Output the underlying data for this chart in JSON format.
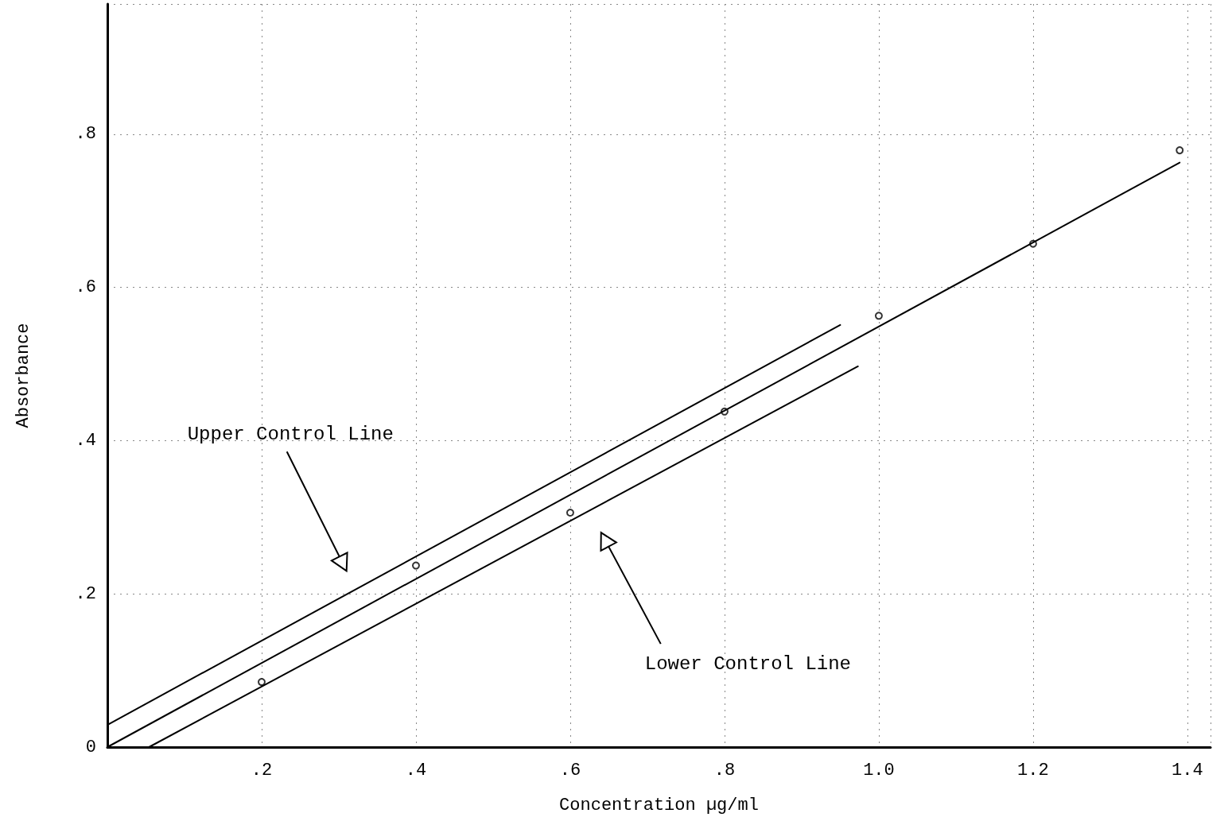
{
  "chart_data": {
    "type": "scatter",
    "xlabel": "Concentration µg/ml",
    "ylabel": "Absorbance",
    "xlim": [
      0,
      1.43
    ],
    "ylim": [
      0,
      0.97
    ],
    "xticks": [
      {
        "value": 0.2,
        "label": ".2"
      },
      {
        "value": 0.4,
        "label": ".4"
      },
      {
        "value": 0.6,
        "label": ".6"
      },
      {
        "value": 0.8,
        "label": ".8"
      },
      {
        "value": 1.0,
        "label": "1.0"
      },
      {
        "value": 1.2,
        "label": "1.2"
      },
      {
        "value": 1.4,
        "label": "1.4"
      }
    ],
    "yticks": [
      0,
      {
        "value": 0.2,
        "label": ".2"
      },
      {
        "value": 0.4,
        "label": ".4"
      },
      {
        "value": 0.6,
        "label": ".6"
      },
      {
        "value": 0.8,
        "label": ".8"
      }
    ],
    "grid": true,
    "series": [
      {
        "marker": "circle",
        "color": "#000000",
        "x": [
          0.2,
          0.4,
          0.6,
          0.8,
          1.0,
          1.2,
          1.39
        ],
        "values": [
          0.085,
          0.237,
          0.306,
          0.438,
          0.563,
          0.657,
          0.779
        ]
      },
      {
        "type": "line",
        "marker": "none",
        "color": "#000000",
        "x": [
          0,
          1.39
        ],
        "values": [
          0,
          0.763
        ]
      },
      {
        "type": "line",
        "marker": "none",
        "color": "#000000",
        "x": [
          0,
          0.95
        ],
        "values": [
          0.029,
          0.551
        ]
      },
      {
        "type": "line",
        "marker": "none",
        "color": "#000000",
        "x": [
          0.054,
          0.973
        ],
        "values": [
          0,
          0.497
        ]
      }
    ],
    "annotations": [
      "Upper Control Line",
      "Lower Control Line"
    ]
  }
}
